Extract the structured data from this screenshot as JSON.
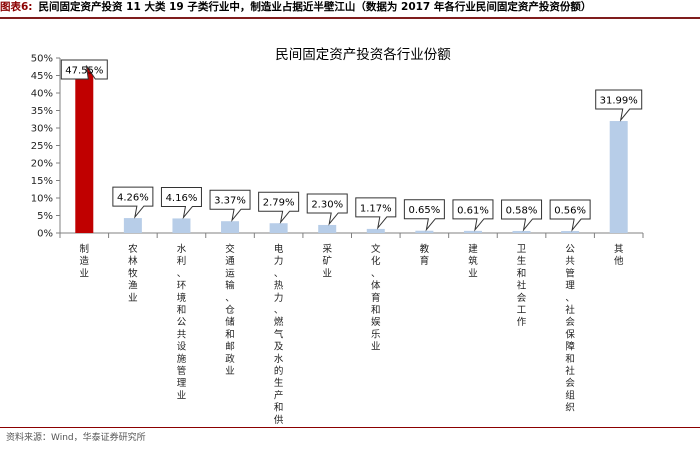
{
  "header": {
    "figure_label": "图表6:",
    "caption": "民间固定资产投资 11 大类 19 子类行业中，制造业占据近半壁江山（数据为 2017 年各行业民间固定资产投资份额）"
  },
  "footer": {
    "source": "资料来源：Wind，华泰证券研究所"
  },
  "colors": {
    "highlight": "#c00000",
    "normal": "#b7cde8",
    "accent": "#8b0000"
  },
  "chart_data": {
    "type": "bar",
    "title": "民间固定资产投资各行业份额",
    "categories": [
      "制造业",
      "农林牧渔业",
      "水利、环境和公共设施管理业",
      "交通运输、仓储和邮政业",
      "电力、热力、燃气及水的生产和供应业",
      "采矿业",
      "文化、体育和娱乐业",
      "教育",
      "建筑业",
      "卫生和社会工作",
      "公共管理、社会保障和社会组织",
      "其他"
    ],
    "values": [
      47.55,
      4.26,
      4.16,
      3.37,
      2.79,
      2.3,
      1.17,
      0.65,
      0.61,
      0.58,
      0.56,
      31.99
    ],
    "data_labels": [
      "47.55%",
      "4.26%",
      "4.16%",
      "3.37%",
      "2.79%",
      "2.30%",
      "1.17%",
      "0.65%",
      "0.61%",
      "0.58%",
      "0.56%",
      "31.99%"
    ],
    "y_ticks": [
      "0%",
      "5%",
      "10%",
      "15%",
      "20%",
      "25%",
      "30%",
      "35%",
      "40%",
      "45%",
      "50%"
    ],
    "ylim": [
      0,
      50
    ],
    "grid": false,
    "legend": "none",
    "highlight_index": 0
  }
}
